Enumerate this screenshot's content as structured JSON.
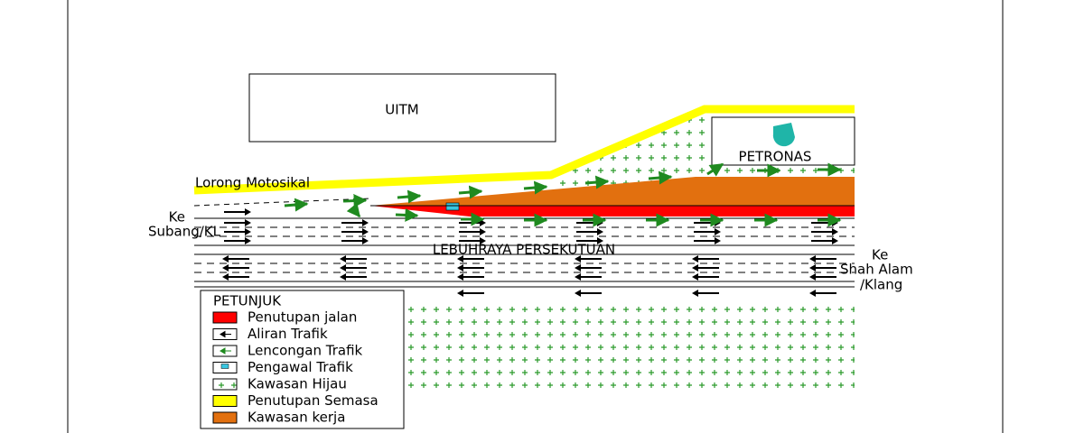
{
  "labels": {
    "uitm": "UITM",
    "petronas": "PETRONAS",
    "motorcycle_lane": "Lorong Motosikal",
    "west_destination": [
      "Ke",
      "Subang/KL"
    ],
    "highway": "LEBUHRAYA PERSEKUTUAN",
    "east_destination": [
      "Ke",
      "Shah Alam",
      "/Klang"
    ]
  },
  "legend": {
    "title": "PETUNJUK",
    "items": [
      "Penutupan jalan",
      "Aliran Trafik",
      "Lencongan Trafik",
      "Pengawal Trafik",
      "Kawasan Hijau",
      "Penutupan Semasa",
      "Kawasan kerja"
    ]
  }
}
